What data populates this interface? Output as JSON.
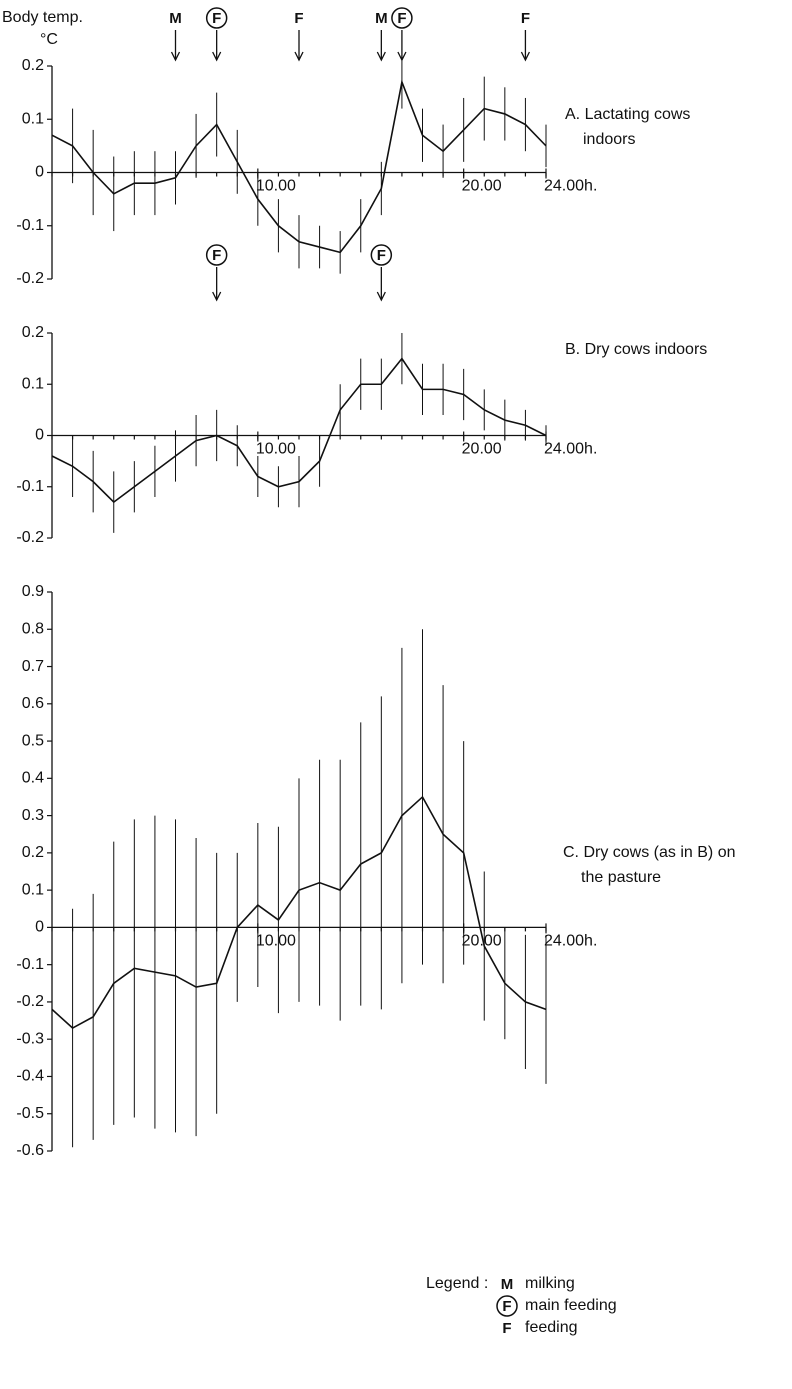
{
  "chart_data": [
    {
      "type": "line",
      "y_label": [
        "Body temp.",
        "°C"
      ],
      "panel_label": [
        "A. Lactating cows",
        "indoors"
      ],
      "x": [
        0,
        1,
        2,
        3,
        4,
        5,
        6,
        7,
        8,
        9,
        10,
        11,
        12,
        13,
        14,
        15,
        16,
        17,
        18,
        19,
        20,
        21,
        22,
        23,
        24
      ],
      "series": [
        {
          "color": "#111111",
          "values": [
            0.07,
            0.05,
            0.0,
            -0.04,
            -0.02,
            -0.02,
            -0.01,
            0.05,
            0.09,
            0.02,
            -0.05,
            -0.1,
            -0.13,
            -0.14,
            -0.15,
            -0.1,
            -0.03,
            0.17,
            0.07,
            0.04,
            0.08,
            0.12,
            0.11,
            0.09,
            0.05
          ],
          "errors": [
            0.06,
            0.07,
            0.08,
            0.07,
            0.06,
            0.06,
            0.05,
            0.06,
            0.06,
            0.06,
            0.05,
            0.05,
            0.05,
            0.04,
            0.04,
            0.05,
            0.05,
            0.05,
            0.05,
            0.05,
            0.06,
            0.06,
            0.05,
            0.05,
            0.04
          ]
        }
      ],
      "xlim": [
        0,
        24
      ],
      "xticks": [
        {
          "value": 10,
          "label": "10.00"
        },
        {
          "value": 20,
          "label": "20.00"
        },
        {
          "value": 24,
          "label": "24.00h."
        }
      ],
      "ylim": [
        -0.2,
        0.2
      ],
      "yticks": [
        0.2,
        0.1,
        0,
        -0.1,
        -0.2
      ],
      "events": [
        {
          "label": "M",
          "x": 6,
          "circled": false
        },
        {
          "label": "F",
          "x": 8,
          "circled": true
        },
        {
          "label": "F",
          "x": 12,
          "circled": false
        },
        {
          "label": "M",
          "x": 16,
          "circled": false
        },
        {
          "label": "F",
          "x": 17,
          "circled": true
        },
        {
          "label": "F",
          "x": 23,
          "circled": false
        }
      ]
    },
    {
      "type": "line",
      "panel_label": [
        "B. Dry cows indoors"
      ],
      "x": [
        0,
        1,
        2,
        3,
        4,
        5,
        6,
        7,
        8,
        9,
        10,
        11,
        12,
        13,
        14,
        15,
        16,
        17,
        18,
        19,
        20,
        21,
        22,
        23,
        24
      ],
      "series": [
        {
          "color": "#111111",
          "values": [
            -0.04,
            -0.06,
            -0.09,
            -0.13,
            -0.1,
            -0.07,
            -0.04,
            -0.01,
            0.0,
            -0.02,
            -0.08,
            -0.1,
            -0.09,
            -0.05,
            0.05,
            0.1,
            0.1,
            0.15,
            0.09,
            0.09,
            0.08,
            0.05,
            0.03,
            0.02,
            0.0
          ],
          "errors": [
            0.05,
            0.06,
            0.06,
            0.06,
            0.05,
            0.05,
            0.05,
            0.05,
            0.05,
            0.04,
            0.04,
            0.04,
            0.05,
            0.05,
            0.05,
            0.05,
            0.05,
            0.05,
            0.05,
            0.05,
            0.05,
            0.04,
            0.04,
            0.03,
            0.02
          ]
        }
      ],
      "xlim": [
        0,
        24
      ],
      "xticks": [
        {
          "value": 10,
          "label": "10.00"
        },
        {
          "value": 20,
          "label": "20.00"
        },
        {
          "value": 24,
          "label": "24.00h."
        }
      ],
      "ylim": [
        -0.2,
        0.2
      ],
      "yticks": [
        0.2,
        0.1,
        0,
        -0.1,
        -0.2
      ],
      "events": [
        {
          "label": "F",
          "x": 8,
          "circled": true
        },
        {
          "label": "F",
          "x": 16,
          "circled": true
        }
      ]
    },
    {
      "type": "line",
      "panel_label": [
        "C. Dry cows (as in B) on",
        "the pasture"
      ],
      "x": [
        0,
        1,
        2,
        3,
        4,
        5,
        6,
        7,
        8,
        9,
        10,
        11,
        12,
        13,
        14,
        15,
        16,
        17,
        18,
        19,
        20,
        21,
        22,
        23,
        24
      ],
      "series": [
        {
          "color": "#111111",
          "values": [
            -0.22,
            -0.27,
            -0.24,
            -0.15,
            -0.11,
            -0.12,
            -0.13,
            -0.16,
            -0.15,
            0.0,
            0.06,
            0.02,
            0.1,
            0.12,
            0.1,
            0.17,
            0.2,
            0.3,
            0.35,
            0.25,
            0.2,
            -0.05,
            -0.15,
            -0.2,
            -0.22
          ],
          "errors": [
            0.3,
            0.32,
            0.33,
            0.38,
            0.4,
            0.42,
            0.42,
            0.4,
            0.35,
            0.2,
            0.22,
            0.25,
            0.3,
            0.33,
            0.35,
            0.38,
            0.42,
            0.45,
            0.45,
            0.4,
            0.3,
            0.2,
            0.15,
            0.18,
            0.2
          ]
        }
      ],
      "xlim": [
        0,
        24
      ],
      "xticks": [
        {
          "value": 10,
          "label": "10.00"
        },
        {
          "value": 20,
          "label": "20.00"
        },
        {
          "value": 24,
          "label": "24.00h."
        }
      ],
      "ylim": [
        -0.6,
        0.9
      ],
      "yticks": [
        0.9,
        0.8,
        0.7,
        0.6,
        0.5,
        0.4,
        0.3,
        0.2,
        0.1,
        0,
        -0.1,
        -0.2,
        -0.3,
        -0.4,
        -0.5,
        -0.6
      ],
      "legend": {
        "title": "Legend :",
        "items": [
          {
            "symbol": "M",
            "circled": false,
            "text": "milking"
          },
          {
            "symbol": "F",
            "circled": true,
            "text": "main feeding"
          },
          {
            "symbol": "F",
            "circled": false,
            "text": "feeding"
          }
        ]
      }
    }
  ]
}
